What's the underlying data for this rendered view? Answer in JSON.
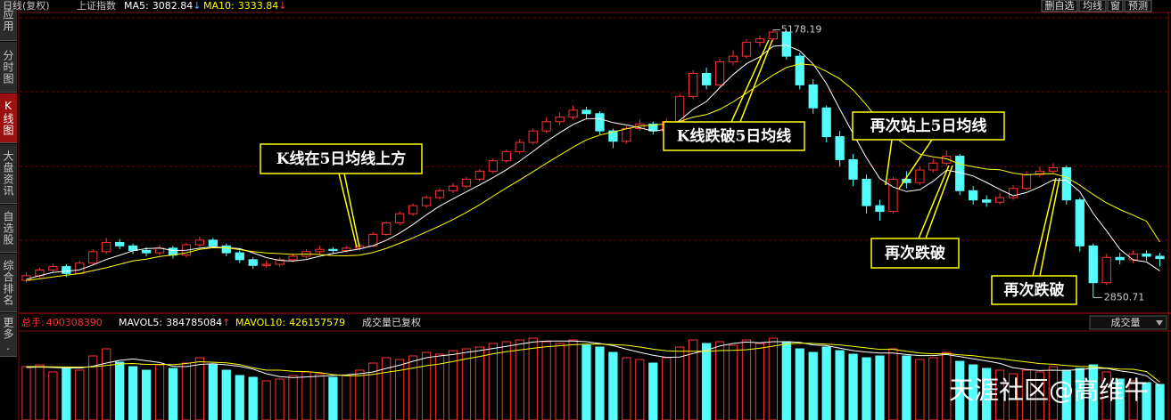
{
  "header": {
    "period": "日线(复权)",
    "symbol": "上证指数",
    "buttons": [
      "删自选",
      "均线",
      "窗",
      "预测"
    ]
  },
  "sidebar": {
    "tabs": [
      "应用",
      "分时图",
      "K线图",
      "大盘资讯",
      "自选股",
      "综合排名",
      "更多."
    ],
    "active": 2
  },
  "watermark": "天涯社区@高维牛",
  "chart_data": [
    {
      "type": "candlestick",
      "up_color": "#ff3232",
      "down_color": "#54fcfc",
      "ylim": [
        2730,
        5330
      ],
      "grid": true,
      "open": [
        3000,
        3040,
        3090,
        3120,
        3060,
        3150,
        3250,
        3330,
        3300,
        3260,
        3240,
        3280,
        3220,
        3310,
        3350,
        3300,
        3240,
        3180,
        3130,
        3140,
        3180,
        3210,
        3250,
        3270,
        3260,
        3280,
        3300,
        3400,
        3500,
        3580,
        3650,
        3720,
        3780,
        3820,
        3880,
        3950,
        4040,
        4120,
        4200,
        4300,
        4380,
        4420,
        4480,
        4450,
        4300,
        4210,
        4320,
        4360,
        4300,
        4380,
        4600,
        4800,
        4700,
        4900,
        4950,
        5070,
        5100,
        5160,
        4950,
        4700,
        4500,
        4250,
        4050,
        3880,
        3650,
        3600,
        3880,
        3850,
        3960,
        4020,
        4080,
        3780,
        3700,
        3680,
        3720,
        3800,
        3920,
        3950,
        3980,
        3700,
        3300,
        2980,
        3200,
        3180,
        3230,
        3210
      ],
      "high": [
        3070,
        3110,
        3150,
        3140,
        3170,
        3270,
        3370,
        3360,
        3320,
        3290,
        3310,
        3300,
        3330,
        3380,
        3370,
        3320,
        3260,
        3200,
        3170,
        3200,
        3230,
        3270,
        3300,
        3290,
        3300,
        3320,
        3420,
        3510,
        3600,
        3670,
        3740,
        3800,
        3850,
        3900,
        3970,
        4060,
        4140,
        4230,
        4320,
        4420,
        4460,
        4520,
        4510,
        4470,
        4320,
        4340,
        4400,
        4380,
        4410,
        4620,
        4830,
        4850,
        4930,
        5000,
        5100,
        5130,
        5178.19,
        5170,
        4980,
        4750,
        4520,
        4300,
        4100,
        3920,
        3700,
        3900,
        3950,
        3990,
        4060,
        4130,
        4100,
        3820,
        3740,
        3760,
        3830,
        3950,
        3990,
        4020,
        4000,
        3720,
        3320,
        3230,
        3240,
        3260,
        3260,
        3240
      ],
      "low": [
        2980,
        3020,
        3070,
        3030,
        3050,
        3130,
        3230,
        3270,
        3230,
        3210,
        3220,
        3190,
        3200,
        3290,
        3280,
        3210,
        3150,
        3100,
        3110,
        3120,
        3160,
        3190,
        3230,
        3230,
        3240,
        3260,
        3290,
        3390,
        3480,
        3560,
        3630,
        3700,
        3760,
        3800,
        3860,
        3930,
        4020,
        4100,
        4180,
        4280,
        4350,
        4400,
        4410,
        4270,
        4150,
        4190,
        4300,
        4270,
        4280,
        4360,
        4580,
        4660,
        4680,
        4870,
        4930,
        5030,
        5080,
        4920,
        4660,
        4450,
        4200,
        3990,
        3820,
        3580,
        3520,
        3580,
        3800,
        3830,
        3940,
        4000,
        3740,
        3660,
        3640,
        3660,
        3700,
        3780,
        3900,
        3930,
        3660,
        3250,
        2850.71,
        2960,
        3140,
        3150,
        3170,
        3120
      ],
      "close": [
        3040,
        3090,
        3120,
        3060,
        3150,
        3250,
        3330,
        3300,
        3260,
        3240,
        3280,
        3220,
        3310,
        3350,
        3300,
        3240,
        3180,
        3130,
        3140,
        3180,
        3210,
        3250,
        3270,
        3260,
        3280,
        3300,
        3400,
        3500,
        3580,
        3650,
        3720,
        3780,
        3820,
        3880,
        3950,
        4040,
        4120,
        4200,
        4300,
        4380,
        4420,
        4480,
        4450,
        4300,
        4210,
        4320,
        4360,
        4300,
        4380,
        4600,
        4800,
        4700,
        4900,
        4950,
        5070,
        5100,
        5160,
        4950,
        4700,
        4500,
        4250,
        4050,
        3880,
        3650,
        3600,
        3880,
        3850,
        3960,
        4020,
        4080,
        3780,
        3700,
        3680,
        3720,
        3800,
        3920,
        3950,
        3980,
        3700,
        3300,
        2980,
        3200,
        3180,
        3230,
        3210,
        3190
      ],
      "series": [
        {
          "name": "MA5:",
          "trend": "↓",
          "color": "#ffffff",
          "values": [
            3010,
            3040,
            3070,
            3080,
            3092,
            3134,
            3182,
            3218,
            3258,
            3276,
            3282,
            3260,
            3262,
            3280,
            3292,
            3284,
            3276,
            3240,
            3198,
            3174,
            3168,
            3182,
            3210,
            3234,
            3254,
            3274,
            3302,
            3348,
            3412,
            3486,
            3570,
            3646,
            3710,
            3770,
            3830,
            3894,
            3962,
            4038,
            4122,
            4208,
            4284,
            4356,
            4406,
            4406,
            4372,
            4352,
            4328,
            4298,
            4314,
            4392,
            4488,
            4556,
            4676,
            4790,
            4884,
            4944,
            5036,
            5046,
            4996,
            4882,
            4712,
            4490,
            4276,
            4066,
            3886,
            3812,
            3772,
            3788,
            3862,
            3958,
            3938,
            3908,
            3852,
            3792,
            3736,
            3764,
            3814,
            3874,
            3870,
            3770,
            3582,
            3432,
            3272,
            3178,
            3160,
            3082.84
          ]
        },
        {
          "name": "MA10:",
          "trend": "↓",
          "color": "#ffff00",
          "values": [
            3000,
            3015,
            3030,
            3045,
            3060,
            3085,
            3110,
            3140,
            3170,
            3184,
            3208,
            3221,
            3240,
            3269,
            3284,
            3283,
            3268,
            3251,
            3239,
            3233,
            3226,
            3229,
            3225,
            3216,
            3214,
            3220,
            3242,
            3279,
            3323,
            3370,
            3421,
            3474,
            3529,
            3591,
            3658,
            3732,
            3804,
            3874,
            3946,
            4019,
            4089,
            4159,
            4222,
            4264,
            4290,
            4318,
            4342,
            4352,
            4360,
            4382,
            4420,
            4442,
            4487,
            4552,
            4628,
            4706,
            4786,
            4851,
            4883,
            4873,
            4818,
            4753,
            4656,
            4526,
            4379,
            4257,
            4172,
            4098,
            4075,
            4058,
            4011,
            3988,
            3968,
            3963,
            3933,
            3917,
            3927,
            3929,
            3897,
            3827,
            3747,
            3674,
            3616,
            3567,
            3515,
            3333.84
          ]
        }
      ],
      "annotations": [
        "K线在5日均线上方",
        "K线跌破5日均线",
        "再次站上5日均线",
        "再次跌破",
        "再次跌破"
      ]
    },
    {
      "type": "volume",
      "title": "总手:",
      "note": "成交量已复权",
      "selector": "成交量",
      "ylim": [
        0,
        1000000000
      ],
      "values": [
        600000000,
        620000000,
        540000000,
        580000000,
        560000000,
        720000000,
        800000000,
        650000000,
        600000000,
        560000000,
        620000000,
        580000000,
        640000000,
        700000000,
        620000000,
        560000000,
        500000000,
        480000000,
        440000000,
        460000000,
        500000000,
        540000000,
        520000000,
        480000000,
        500000000,
        560000000,
        640000000,
        700000000,
        680000000,
        720000000,
        760000000,
        740000000,
        780000000,
        800000000,
        820000000,
        860000000,
        880000000,
        900000000,
        920000000,
        880000000,
        860000000,
        900000000,
        840000000,
        820000000,
        760000000,
        700000000,
        680000000,
        640000000,
        700000000,
        820000000,
        900000000,
        860000000,
        880000000,
        840000000,
        900000000,
        860000000,
        920000000,
        880000000,
        800000000,
        760000000,
        820000000,
        780000000,
        740000000,
        700000000,
        720000000,
        800000000,
        720000000,
        680000000,
        700000000,
        760000000,
        660000000,
        620000000,
        580000000,
        560000000,
        520000000,
        560000000,
        540000000,
        600000000,
        560000000,
        580000000,
        620000000,
        540000000,
        460000000,
        440000000,
        420000000,
        400308390
      ],
      "series": [
        {
          "name": "MAVOL5:",
          "trend": "↑",
          "color": "#ffffff",
          "values": [
            590000000,
            595000000,
            590000000,
            585000000,
            584000000,
            604000000,
            640000000,
            670000000,
            686000000,
            666000000,
            646000000,
            602000000,
            600000000,
            624000000,
            632000000,
            620000000,
            604000000,
            572000000,
            520000000,
            488000000,
            476000000,
            484000000,
            492000000,
            500000000,
            508000000,
            520000000,
            540000000,
            580000000,
            616000000,
            660000000,
            700000000,
            720000000,
            736000000,
            760000000,
            780000000,
            804000000,
            828000000,
            852000000,
            876000000,
            888000000,
            888000000,
            888000000,
            880000000,
            860000000,
            836000000,
            796000000,
            760000000,
            728000000,
            704000000,
            708000000,
            748000000,
            784000000,
            832000000,
            860000000,
            876000000,
            868000000,
            880000000,
            880000000,
            872000000,
            844000000,
            836000000,
            808000000,
            780000000,
            764000000,
            752000000,
            752000000,
            736000000,
            724000000,
            724000000,
            736000000,
            712000000,
            688000000,
            664000000,
            636000000,
            588000000,
            568000000,
            556000000,
            560000000,
            556000000,
            568000000,
            580000000,
            580000000,
            552000000,
            532000000,
            496000000,
            384785084
          ]
        },
        {
          "name": "MAVOL10:",
          "color": "#ffff00",
          "values": [
            600000000,
            600000000,
            598000000,
            596000000,
            594000000,
            597000000,
            612000000,
            630000000,
            635000000,
            625000000,
            625000000,
            621000000,
            635000000,
            655000000,
            649000000,
            643000000,
            623000000,
            586000000,
            560000000,
            560000000,
            548000000,
            544000000,
            532000000,
            510000000,
            498000000,
            498000000,
            512000000,
            536000000,
            558000000,
            584000000,
            610000000,
            630000000,
            658000000,
            688000000,
            714000000,
            744000000,
            768000000,
            788000000,
            806000000,
            824000000,
            834000000,
            846000000,
            852000000,
            854000000,
            848000000,
            840000000,
            820000000,
            796000000,
            778000000,
            772000000,
            772000000,
            772000000,
            780000000,
            782000000,
            790000000,
            806000000,
            830000000,
            854000000,
            864000000,
            860000000,
            852000000,
            844000000,
            828000000,
            810000000,
            794000000,
            794000000,
            772000000,
            752000000,
            744000000,
            748000000,
            732000000,
            722000000,
            704000000,
            690000000,
            670000000,
            652000000,
            634000000,
            626000000,
            612000000,
            602000000,
            598000000,
            584000000,
            572000000,
            570000000,
            544000000,
            426157579
          ]
        }
      ]
    }
  ]
}
